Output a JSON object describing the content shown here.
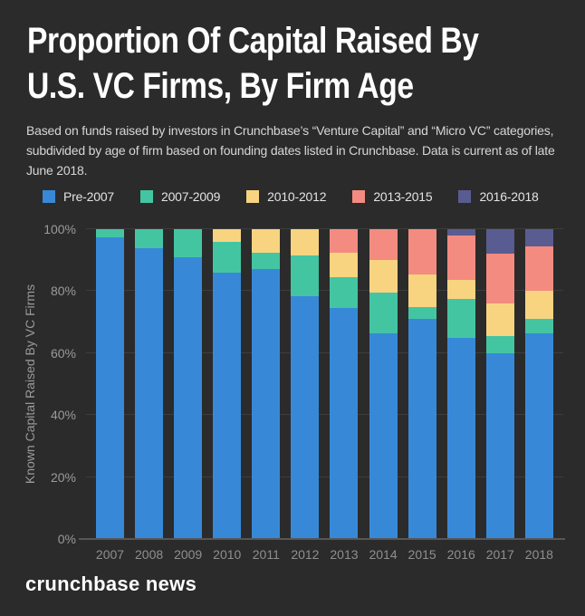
{
  "page": {
    "background": "#2b2b2b"
  },
  "header": {
    "title_line1": "Proportion Of Capital Raised By",
    "title_line2": "U.S. VC Firms, By Firm Age",
    "subtitle": "Based on funds raised by investors in Crunchbase’s “Venture Capital” and “Micro VC” categories, subdivided by age of firm based on founding dates listed in Crunchbase. Data is current as of late June 2018."
  },
  "footer": {
    "brand": "crunchbase news"
  },
  "colors": {
    "background": "#2b2b2b",
    "title_text": "#ffffff",
    "subtitle_text": "#d6d6d6",
    "axis_text": "#9a9a9a",
    "gridline": "#3d3d3d",
    "baseline": "#565656"
  },
  "chart_data": {
    "type": "bar",
    "stacked": true,
    "normalized_percent": true,
    "title": "Proportion Of Capital Raised By U.S. VC Firms, By Firm Age",
    "xlabel": "",
    "ylabel": "Known Capital Raised By VC Firms",
    "ylim": [
      0,
      100
    ],
    "yticks": [
      0,
      20,
      40,
      60,
      80,
      100
    ],
    "ytick_suffix": "%",
    "grid": true,
    "legend_position": "top",
    "categories": [
      "2007",
      "2008",
      "2009",
      "2010",
      "2011",
      "2012",
      "2013",
      "2014",
      "2015",
      "2016",
      "2017",
      "2018"
    ],
    "series": [
      {
        "name": "Pre-2007",
        "color": "#3789d8",
        "values": [
          97.5,
          94,
          91,
          86,
          87,
          78.5,
          74.5,
          66.5,
          71,
          65,
          60,
          66.5
        ]
      },
      {
        "name": "2007-2009",
        "color": "#44c5a2",
        "values": [
          2.5,
          6,
          9,
          10,
          5.5,
          13,
          10,
          13,
          4,
          12.5,
          5.5,
          4.5
        ]
      },
      {
        "name": "2010-2012",
        "color": "#f8d480",
        "values": [
          0,
          0,
          0,
          4,
          7.5,
          8.5,
          8,
          10.5,
          10.5,
          6,
          10.5,
          9
        ]
      },
      {
        "name": "2013-2015",
        "color": "#f48b80",
        "values": [
          0,
          0,
          0,
          0,
          0,
          0,
          7.5,
          10,
          14.5,
          14.5,
          16,
          14.5
        ]
      },
      {
        "name": "2016-2018",
        "color": "#595c90",
        "values": [
          0,
          0,
          0,
          0,
          0,
          0,
          0,
          0,
          0,
          2,
          8,
          5.5
        ]
      }
    ]
  }
}
